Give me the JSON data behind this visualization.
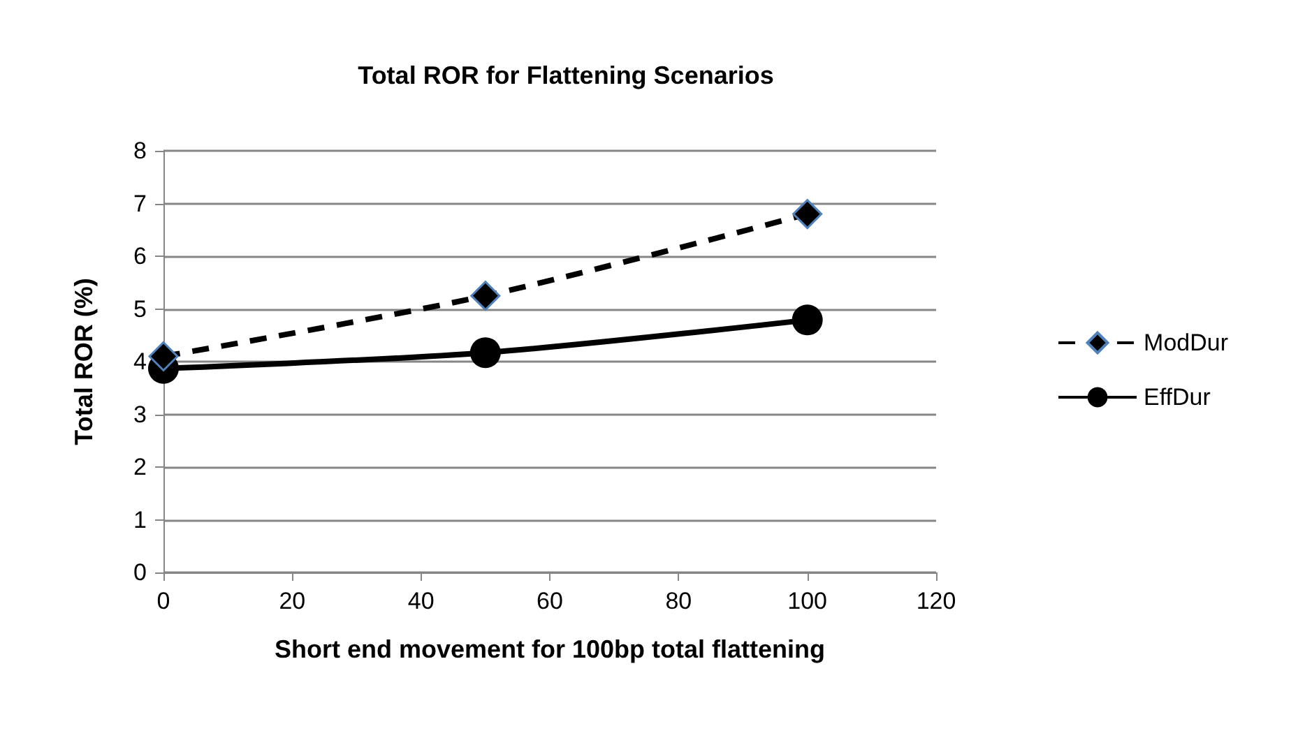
{
  "chart_data": {
    "type": "line",
    "title": "Total ROR for Flattening Scenarios",
    "xlabel": "Short end movement for 100bp total flattening",
    "ylabel": "Total ROR (%)",
    "x": [
      0,
      50,
      100
    ],
    "xlim": [
      0,
      120
    ],
    "xticks": [
      0,
      20,
      40,
      60,
      80,
      100,
      120
    ],
    "ylim": [
      0,
      8
    ],
    "yticks": [
      0,
      1,
      2,
      3,
      4,
      5,
      6,
      7,
      8
    ],
    "grid": "y",
    "legend": "right",
    "series": [
      {
        "name": "ModDur",
        "color": "#000000",
        "values": [
          4.1,
          5.25,
          6.8
        ],
        "marker": "diamond",
        "line_style": "dashed"
      },
      {
        "name": "EffDur",
        "color": "#000000",
        "values": [
          3.87,
          4.17,
          4.79
        ],
        "marker": "circle",
        "line_style": "solid"
      }
    ]
  }
}
